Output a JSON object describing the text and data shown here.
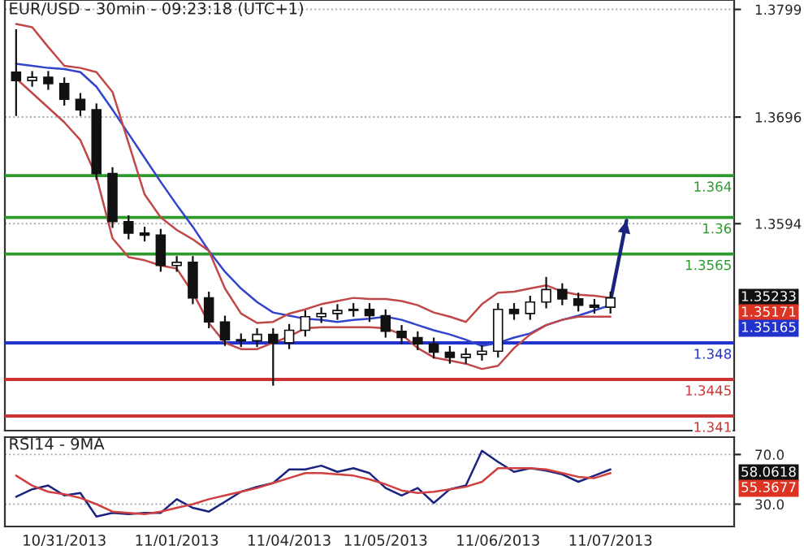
{
  "chart_data": [
    {
      "type": "candlestick",
      "title": "EUR/USD - 30min - 09:23:18 (UTC+1)",
      "categories": [
        null,
        null,
        null,
        null,
        null,
        null,
        null,
        null,
        null,
        null,
        null,
        null,
        null,
        null,
        null,
        null,
        null,
        null,
        null,
        null,
        null,
        null,
        null,
        null,
        null,
        null,
        null,
        null,
        null,
        null,
        null,
        null,
        null,
        null,
        null,
        null,
        null,
        null,
        null,
        null,
        null,
        null,
        null,
        null,
        null
      ],
      "ohlc": [
        [
          1.3739,
          1.378,
          1.3697,
          1.3731
        ],
        [
          1.3731,
          1.374,
          1.3725,
          1.3734
        ],
        [
          1.3734,
          1.374,
          1.3722,
          1.3728
        ],
        [
          1.3728,
          1.3734,
          1.3707,
          1.3713
        ],
        [
          1.3713,
          1.3719,
          1.3697,
          1.3703
        ],
        [
          1.3703,
          1.3709,
          1.3636,
          1.3642
        ],
        [
          1.3642,
          1.3648,
          1.359,
          1.3596
        ],
        [
          1.3596,
          1.3602,
          1.3579,
          1.3585
        ],
        [
          1.3585,
          1.3591,
          1.3577,
          1.3583
        ],
        [
          1.3583,
          1.3589,
          1.3548,
          1.3554
        ],
        [
          1.3554,
          1.3563,
          1.3548,
          1.3557
        ],
        [
          1.3557,
          1.3563,
          1.3517,
          1.3523
        ],
        [
          1.3523,
          1.3529,
          1.3494,
          1.35
        ],
        [
          1.35,
          1.3506,
          1.3477,
          1.3483
        ],
        [
          1.3483,
          1.3489,
          1.3476,
          1.3482
        ],
        [
          1.3482,
          1.3494,
          1.3476,
          1.3488
        ],
        [
          1.3488,
          1.3494,
          1.3439,
          1.348
        ],
        [
          1.348,
          1.3498,
          1.3474,
          1.3492
        ],
        [
          1.3492,
          1.3511,
          1.3486,
          1.3505
        ],
        [
          1.3505,
          1.3514,
          1.3499,
          1.3508
        ],
        [
          1.3508,
          1.3517,
          1.3502,
          1.3511
        ],
        [
          1.3511,
          1.3518,
          1.3505,
          1.3512
        ],
        [
          1.3512,
          1.3518,
          1.35,
          1.3506
        ],
        [
          1.3506,
          1.3512,
          1.3485,
          1.3491
        ],
        [
          1.3491,
          1.3497,
          1.3479,
          1.3485
        ],
        [
          1.3485,
          1.3491,
          1.3473,
          1.3479
        ],
        [
          1.3479,
          1.3485,
          1.3465,
          1.3471
        ],
        [
          1.3471,
          1.3477,
          1.346,
          1.3466
        ],
        [
          1.3466,
          1.3475,
          1.346,
          1.3469
        ],
        [
          1.3469,
          1.3478,
          1.3463,
          1.3472
        ],
        [
          1.3472,
          1.3518,
          1.3466,
          1.3512
        ],
        [
          1.3512,
          1.3518,
          1.3502,
          1.3508
        ],
        [
          1.3508,
          1.3525,
          1.3502,
          1.3519
        ],
        [
          1.3519,
          1.3543,
          1.3513,
          1.3531
        ],
        [
          1.3531,
          1.3537,
          1.3516,
          1.3522
        ],
        [
          1.3522,
          1.3528,
          1.351,
          1.3516
        ],
        [
          1.3516,
          1.3522,
          1.3508,
          1.3514
        ],
        [
          1.3514,
          1.3529,
          1.3508,
          1.3523
        ],
        null,
        null,
        null,
        null,
        null,
        null,
        null
      ],
      "series": [
        {
          "type": "line",
          "color": "#3344cc",
          "values": [
            1.3747,
            1.3745,
            1.3743,
            1.3742,
            1.3739,
            1.3725,
            1.3703,
            1.368,
            1.3657,
            1.3634,
            1.3612,
            1.3591,
            1.3568,
            1.3548,
            1.3532,
            1.3519,
            1.3509,
            1.3506,
            1.3503,
            1.3502,
            1.35,
            1.3502,
            1.3503,
            1.3505,
            1.3502,
            1.3497,
            1.3492,
            1.3488,
            1.3483,
            1.3477,
            1.348,
            1.3485,
            1.3489,
            1.3497,
            1.3502,
            1.3506,
            1.3511,
            1.3516,
            null,
            null,
            null,
            null,
            null,
            null,
            null
          ]
        },
        {
          "type": "line",
          "color": "#c04848",
          "values": [
            1.3785,
            1.3782,
            1.3763,
            1.3745,
            1.3743,
            1.3739,
            1.372,
            1.3671,
            1.3622,
            1.36,
            1.3588,
            1.3579,
            1.3568,
            1.3532,
            1.3508,
            1.3499,
            1.35,
            1.3508,
            1.3512,
            1.3517,
            1.352,
            1.3523,
            1.3522,
            1.3522,
            1.352,
            1.3516,
            1.3509,
            1.3505,
            1.35,
            1.3517,
            1.3528,
            1.3529,
            1.3532,
            1.3535,
            1.3529,
            1.3526,
            1.3525,
            1.3523,
            null,
            null,
            null,
            null,
            null,
            null,
            null
          ]
        },
        {
          "type": "line",
          "color": "#c04848",
          "values": [
            1.3733,
            1.3719,
            1.3705,
            1.3691,
            1.3674,
            1.3639,
            1.358,
            1.3562,
            1.3559,
            1.3554,
            1.3551,
            1.3528,
            1.3499,
            1.348,
            1.3474,
            1.3474,
            1.348,
            1.3486,
            1.3494,
            1.3495,
            1.3495,
            1.3495,
            1.3495,
            1.3494,
            1.3488,
            1.3475,
            1.3466,
            1.3463,
            1.346,
            1.3455,
            1.3458,
            1.3475,
            1.3488,
            1.3497,
            1.3502,
            1.3505,
            1.3505,
            1.3505,
            null,
            null,
            null,
            null,
            null,
            null,
            null
          ]
        },
        {
          "type": "line",
          "color": "#1a237e",
          "values": [
            null,
            null,
            null,
            null,
            null,
            null,
            null,
            null,
            null,
            null,
            null,
            null,
            null,
            null,
            null,
            null,
            null,
            null,
            null,
            null,
            null,
            null,
            null,
            null,
            null,
            null,
            null,
            null,
            null,
            null,
            null,
            null,
            null,
            null,
            null,
            null,
            null,
            1.352,
            1.3597,
            null,
            null,
            null,
            null,
            null,
            null
          ]
        }
      ],
      "ref_lines": [
        {
          "axis": "y",
          "value": 1.364,
          "label": "1.364",
          "color": "#2e9a2e"
        },
        {
          "axis": "y",
          "value": 1.36,
          "label": "1.36",
          "color": "#2e9a2e"
        },
        {
          "axis": "y",
          "value": 1.3565,
          "label": "1.3565",
          "color": "#2e9a2e"
        },
        {
          "axis": "y",
          "value": 1.348,
          "label": "1.348",
          "color": "#2233cc"
        },
        {
          "axis": "y",
          "value": 1.3445,
          "label": "1.3445",
          "color": "#cc3333"
        },
        {
          "axis": "y",
          "value": 1.341,
          "label": "1.341",
          "color": "#cc3333"
        }
      ],
      "annotations": [
        "1.35233",
        "1.35171",
        "1.35165"
      ],
      "ylim": [
        1.3396,
        1.3808
      ],
      "yticks": [
        1.3594,
        1.3696,
        1.3799
      ],
      "grid": "y",
      "tick_labels": "y"
    },
    {
      "type": "line",
      "title": "RSI14 - 9MA",
      "categories": [
        null,
        null,
        null,
        "10/31/2013",
        null,
        null,
        null,
        null,
        null,
        null,
        "11/01/2013",
        null,
        null,
        null,
        null,
        null,
        null,
        "11/04/2013",
        null,
        null,
        null,
        null,
        null,
        "11/05/2013",
        null,
        null,
        null,
        null,
        null,
        null,
        "11/06/2013",
        null,
        null,
        null,
        null,
        null,
        null,
        "11/07/2013",
        null,
        null,
        null,
        null,
        null,
        null,
        null
      ],
      "series": [
        {
          "color": "#1a237e",
          "values": [
            36,
            42,
            45,
            37,
            39,
            20,
            23,
            22,
            23,
            23,
            34,
            27,
            24,
            32,
            40,
            44,
            47,
            58,
            58,
            61,
            56,
            59,
            55,
            43,
            37,
            43,
            31,
            42,
            45,
            73,
            64,
            56,
            59,
            57,
            54,
            48,
            53,
            58,
            null,
            null,
            null,
            null,
            null,
            null,
            null
          ]
        },
        {
          "color": "#d04040",
          "values": [
            53,
            45,
            40,
            38,
            35,
            30,
            24,
            23,
            22,
            24,
            27,
            30,
            34,
            37,
            40,
            43,
            47,
            51,
            55,
            55,
            54,
            53,
            50,
            46,
            41,
            39,
            40,
            42,
            44,
            48,
            59,
            59,
            59,
            58,
            55,
            52,
            51,
            55,
            null,
            null,
            null,
            null,
            null,
            null,
            null
          ]
        }
      ],
      "annotations": [
        "58.0618",
        "55.3677"
      ],
      "ylim": [
        12,
        84
      ],
      "yticks": [
        {
          "value": 30,
          "label": "30.0"
        },
        {
          "value": 70,
          "label": "70.0"
        }
      ],
      "grid": "y"
    }
  ]
}
